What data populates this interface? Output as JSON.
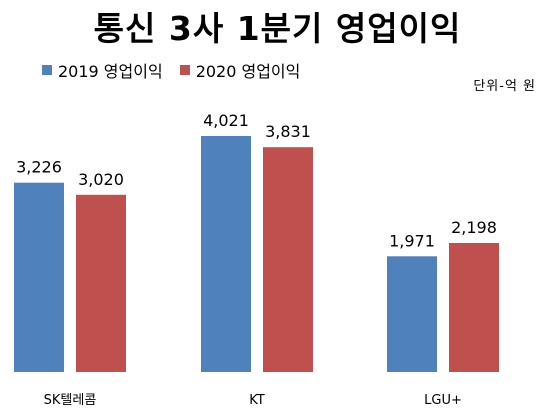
{
  "chart_data": {
    "type": "bar",
    "title": "통신 3사 1분기  영업이익",
    "unit": "단위-억  원",
    "categories": [
      "SK텔레콤",
      "KT",
      "LGU+"
    ],
    "series": [
      {
        "name": "2019 영업이익",
        "color": "#4f81bd",
        "values": [
          3226,
          4021,
          1971
        ],
        "labels": [
          "3,226",
          "4,021",
          "1,971"
        ]
      },
      {
        "name": "2020 영업이익",
        "color": "#c0504d",
        "values": [
          3020,
          3831,
          2198
        ],
        "labels": [
          "3,020",
          "3,831",
          "2,198"
        ]
      }
    ],
    "xlabel": "",
    "ylabel": "",
    "ylim": [
      0,
      4500
    ],
    "grid": false,
    "legend_position": "top-left"
  }
}
